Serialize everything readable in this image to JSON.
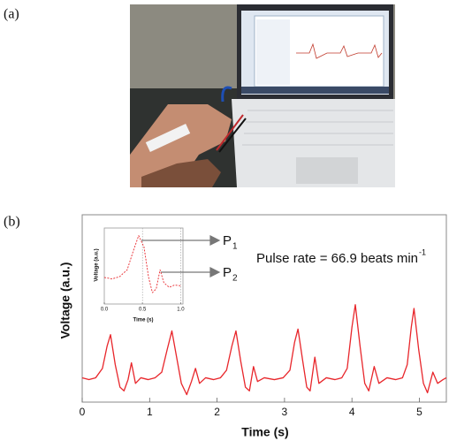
{
  "panel_labels": [
    "(a)",
    "(b)"
  ],
  "chart_data": [
    {
      "type": "line",
      "xlabel": "Time (s)",
      "ylabel": "Voltage (a.u.)",
      "x": [
        0,
        0.1,
        0.2,
        0.3,
        0.37,
        0.42,
        0.49,
        0.56,
        0.62,
        0.68,
        0.73,
        0.79,
        0.87,
        0.98,
        1.08,
        1.18,
        1.26,
        1.33,
        1.4,
        1.47,
        1.55,
        1.62,
        1.68,
        1.74,
        1.83,
        1.95,
        2.05,
        2.14,
        2.22,
        2.28,
        2.35,
        2.42,
        2.48,
        2.54,
        2.6,
        2.7,
        2.85,
        2.98,
        3.08,
        3.15,
        3.2,
        3.27,
        3.33,
        3.38,
        3.45,
        3.51,
        3.62,
        3.75,
        3.85,
        3.93,
        4.0,
        4.05,
        4.12,
        4.19,
        4.25,
        4.33,
        4.4,
        4.52,
        4.65,
        4.75,
        4.82,
        4.88,
        4.92,
        4.99,
        5.06,
        5.12,
        5.2,
        5.27,
        5.35,
        5.4
      ],
      "series": [
        {
          "color": "#e8262b",
          "values": [
            0.13,
            0.12,
            0.13,
            0.18,
            0.3,
            0.36,
            0.2,
            0.08,
            0.06,
            0.12,
            0.21,
            0.1,
            0.13,
            0.12,
            0.13,
            0.16,
            0.28,
            0.38,
            0.24,
            0.1,
            0.04,
            0.11,
            0.18,
            0.1,
            0.13,
            0.12,
            0.13,
            0.17,
            0.3,
            0.38,
            0.22,
            0.08,
            0.06,
            0.19,
            0.11,
            0.13,
            0.12,
            0.13,
            0.17,
            0.32,
            0.39,
            0.22,
            0.08,
            0.06,
            0.24,
            0.1,
            0.13,
            0.12,
            0.13,
            0.18,
            0.4,
            0.52,
            0.3,
            0.1,
            0.06,
            0.19,
            0.1,
            0.13,
            0.12,
            0.13,
            0.2,
            0.4,
            0.5,
            0.28,
            0.1,
            0.05,
            0.16,
            0.1,
            0.12,
            0.13
          ]
        }
      ],
      "xlim": [
        0,
        5.4
      ],
      "ylim": [
        0,
        1
      ],
      "xticks": [
        0,
        1,
        2,
        3,
        4,
        5
      ],
      "annotations": [
        {
          "text": "P",
          "sub": "1"
        },
        {
          "text": "P",
          "sub": "2"
        },
        {
          "text": "Pulse rate = 66.9 beats min",
          "sup": "-1"
        }
      ]
    },
    {
      "type": "line",
      "xlabel": "Time (s)",
      "ylabel": "Voltage (a.u.)",
      "x": [
        0,
        0.1,
        0.2,
        0.3,
        0.38,
        0.45,
        0.52,
        0.58,
        0.63,
        0.68,
        0.73,
        0.78,
        0.85,
        0.92,
        1.0
      ],
      "series": [
        {
          "color": "#e8262b",
          "values": [
            0.35,
            0.33,
            0.36,
            0.45,
            0.7,
            0.9,
            0.75,
            0.35,
            0.15,
            0.2,
            0.45,
            0.28,
            0.22,
            0.25,
            0.24
          ]
        }
      ],
      "xlim": [
        0,
        1.03
      ],
      "ylim": [
        0,
        1
      ],
      "xticks": [
        {
          "value": 0,
          "label": "0.0"
        },
        0.5,
        {
          "value": 1,
          "label": "1.0"
        }
      ]
    }
  ]
}
